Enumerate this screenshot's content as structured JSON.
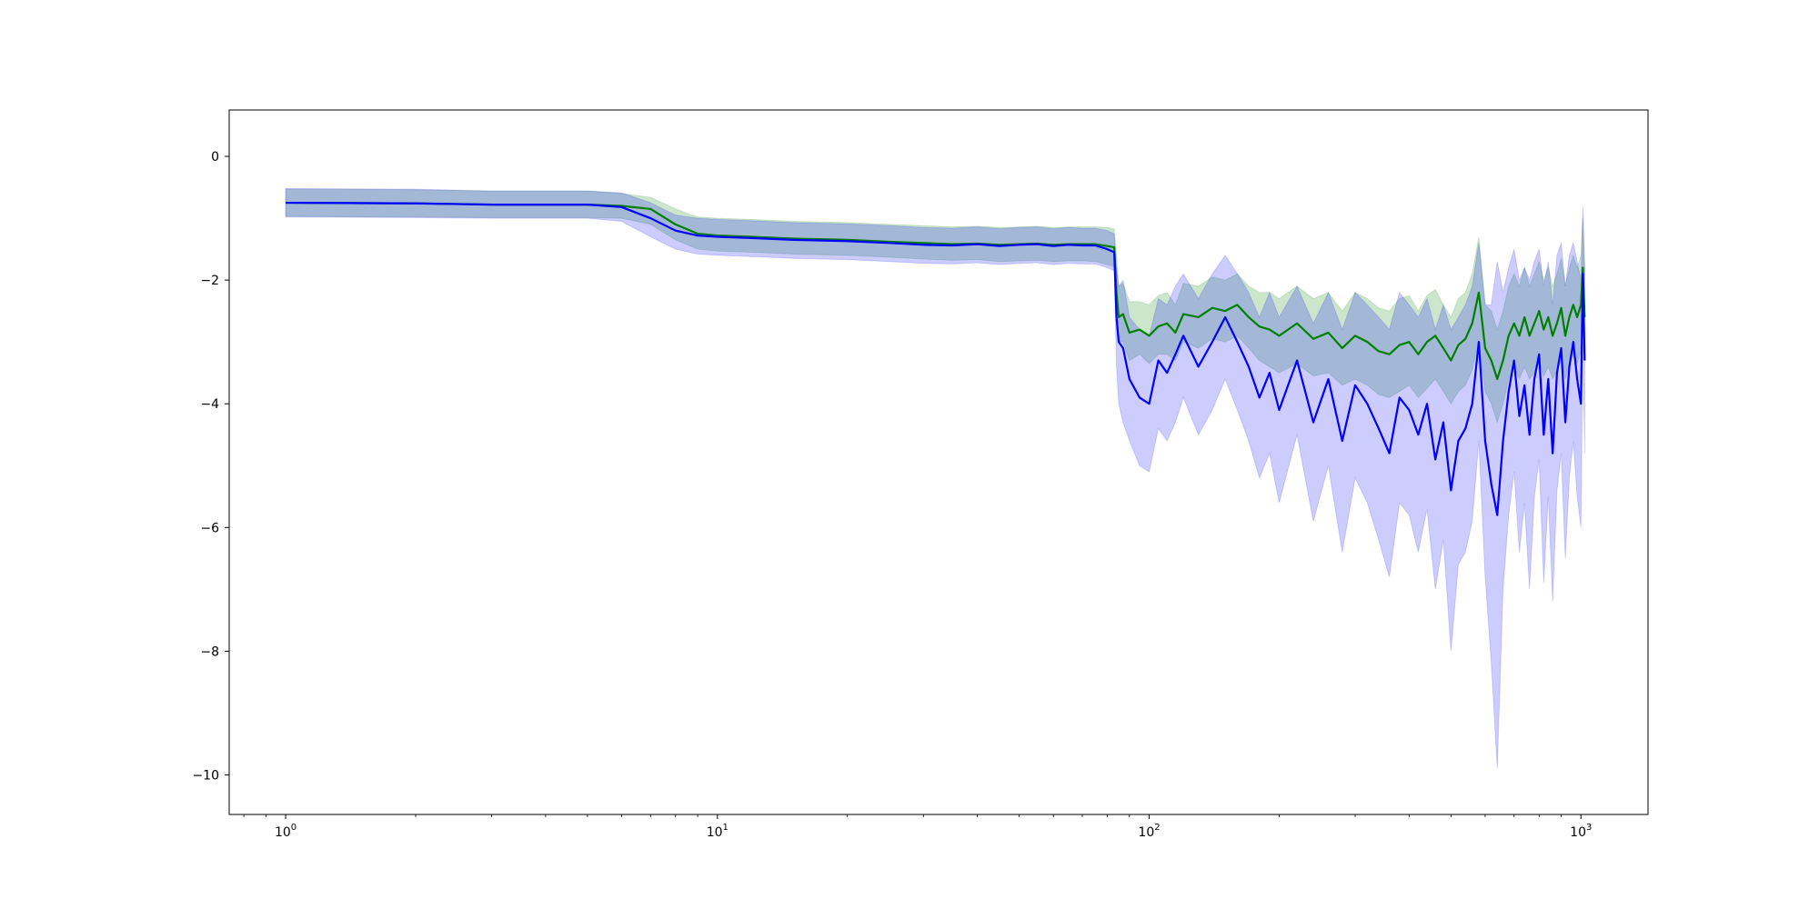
{
  "chart_data": {
    "type": "line",
    "title": "",
    "xlabel": "",
    "ylabel": "",
    "xscale": "log",
    "xlim": [
      0.74,
      1430
    ],
    "ylim": [
      -10.64,
      0.75
    ],
    "grid": false,
    "legend": "none",
    "x_ticks": [
      {
        "value": 1,
        "base": "10",
        "exp": "0"
      },
      {
        "value": 10,
        "base": "10",
        "exp": "1"
      },
      {
        "value": 100,
        "base": "10",
        "exp": "2"
      },
      {
        "value": 1000,
        "base": "10",
        "exp": "3"
      }
    ],
    "y_ticks": [
      {
        "value": 0,
        "label": "0"
      },
      {
        "value": -2,
        "label": "−2"
      },
      {
        "value": -4,
        "label": "−4"
      },
      {
        "value": -6,
        "label": "−6"
      },
      {
        "value": -8,
        "label": "−8"
      },
      {
        "value": -10,
        "label": "−10"
      }
    ],
    "series": [
      {
        "color": "#008000",
        "band_color": "#008000",
        "band_opacity": 0.2,
        "x": [
          1,
          2,
          3,
          4,
          5,
          6,
          7,
          8,
          9,
          10,
          12,
          15,
          20,
          25,
          30,
          35,
          40,
          45,
          50,
          55,
          60,
          65,
          70,
          75,
          80,
          83,
          84,
          85,
          87,
          90,
          95,
          100,
          105,
          110,
          115,
          120,
          130,
          140,
          150,
          160,
          170,
          180,
          190,
          200,
          220,
          240,
          260,
          280,
          300,
          320,
          340,
          360,
          380,
          400,
          420,
          440,
          460,
          480,
          500,
          520,
          540,
          560,
          580,
          600,
          620,
          640,
          660,
          680,
          700,
          720,
          740,
          760,
          780,
          800,
          820,
          840,
          860,
          880,
          900,
          920,
          940,
          960,
          980,
          1000,
          1010,
          1020
        ],
        "mean": [
          -0.75,
          -0.76,
          -0.78,
          -0.78,
          -0.78,
          -0.8,
          -0.85,
          -1.1,
          -1.25,
          -1.28,
          -1.3,
          -1.33,
          -1.35,
          -1.38,
          -1.4,
          -1.42,
          -1.41,
          -1.43,
          -1.42,
          -1.41,
          -1.43,
          -1.42,
          -1.42,
          -1.42,
          -1.45,
          -1.47,
          -2.2,
          -2.6,
          -2.55,
          -2.85,
          -2.8,
          -2.9,
          -2.75,
          -2.7,
          -2.85,
          -2.55,
          -2.6,
          -2.45,
          -2.5,
          -2.4,
          -2.6,
          -2.75,
          -2.8,
          -2.9,
          -2.7,
          -2.95,
          -2.85,
          -3.1,
          -2.9,
          -3.0,
          -3.15,
          -3.2,
          -3.05,
          -3.0,
          -3.2,
          -3.0,
          -2.9,
          -3.1,
          -3.3,
          -3.05,
          -2.95,
          -2.7,
          -2.2,
          -3.1,
          -3.3,
          -3.6,
          -3.3,
          -2.9,
          -2.7,
          -2.9,
          -2.6,
          -2.9,
          -2.7,
          -2.5,
          -2.8,
          -2.6,
          -2.9,
          -2.7,
          -2.45,
          -2.9,
          -2.6,
          -2.4,
          -2.6,
          -2.4,
          -1.8,
          -2.6
        ],
        "lower": [
          -0.97,
          -0.98,
          -0.99,
          -0.99,
          -0.99,
          -1.0,
          -1.1,
          -1.35,
          -1.5,
          -1.53,
          -1.55,
          -1.58,
          -1.6,
          -1.63,
          -1.66,
          -1.68,
          -1.67,
          -1.7,
          -1.69,
          -1.68,
          -1.7,
          -1.69,
          -1.69,
          -1.7,
          -1.75,
          -1.78,
          -2.8,
          -3.0,
          -3.0,
          -3.3,
          -3.2,
          -3.35,
          -3.2,
          -3.2,
          -3.3,
          -3.0,
          -3.1,
          -2.95,
          -3.0,
          -2.9,
          -3.1,
          -3.3,
          -3.4,
          -3.5,
          -3.35,
          -3.55,
          -3.5,
          -3.7,
          -3.6,
          -3.7,
          -3.85,
          -3.9,
          -3.8,
          -3.7,
          -3.9,
          -3.75,
          -3.6,
          -3.8,
          -4.0,
          -3.8,
          -3.7,
          -3.45,
          -3.0,
          -3.8,
          -4.0,
          -4.3,
          -4.0,
          -3.6,
          -3.4,
          -3.6,
          -3.4,
          -3.6,
          -3.5,
          -3.3,
          -3.55,
          -3.4,
          -3.6,
          -3.45,
          -3.2,
          -3.6,
          -3.35,
          -3.2,
          -3.35,
          -3.15,
          -2.6,
          -3.3
        ],
        "upper": [
          -0.53,
          -0.54,
          -0.56,
          -0.56,
          -0.56,
          -0.6,
          -0.66,
          -0.85,
          -0.98,
          -1.0,
          -1.02,
          -1.05,
          -1.07,
          -1.1,
          -1.12,
          -1.14,
          -1.13,
          -1.15,
          -1.14,
          -1.13,
          -1.15,
          -1.14,
          -1.14,
          -1.14,
          -1.15,
          -1.17,
          -1.6,
          -2.1,
          -2.05,
          -2.35,
          -2.35,
          -2.4,
          -2.25,
          -2.2,
          -2.4,
          -2.05,
          -2.1,
          -1.95,
          -2.0,
          -1.9,
          -2.1,
          -2.2,
          -2.2,
          -2.3,
          -2.1,
          -2.3,
          -2.2,
          -2.5,
          -2.2,
          -2.3,
          -2.45,
          -2.5,
          -2.3,
          -2.25,
          -2.5,
          -2.25,
          -2.15,
          -2.4,
          -2.6,
          -2.3,
          -2.2,
          -1.9,
          -1.3,
          -2.4,
          -2.5,
          -2.8,
          -2.5,
          -2.1,
          -1.9,
          -2.1,
          -1.8,
          -2.1,
          -1.9,
          -1.7,
          -2.0,
          -1.8,
          -2.1,
          -1.9,
          -1.65,
          -2.1,
          -1.8,
          -1.6,
          -1.8,
          -1.6,
          -1.0,
          -1.8
        ]
      },
      {
        "color": "#0000ff",
        "band_color": "#0000ff",
        "band_opacity": 0.2,
        "x": [
          1,
          2,
          3,
          4,
          5,
          6,
          7,
          8,
          9,
          10,
          12,
          15,
          20,
          25,
          30,
          35,
          40,
          45,
          50,
          55,
          60,
          65,
          70,
          75,
          80,
          83,
          84,
          85,
          87,
          90,
          95,
          100,
          105,
          110,
          115,
          120,
          130,
          140,
          150,
          160,
          170,
          180,
          190,
          200,
          220,
          240,
          260,
          280,
          300,
          320,
          340,
          360,
          380,
          400,
          420,
          440,
          460,
          480,
          500,
          520,
          540,
          560,
          580,
          600,
          620,
          640,
          660,
          680,
          700,
          720,
          740,
          760,
          780,
          800,
          820,
          840,
          860,
          880,
          900,
          920,
          940,
          960,
          980,
          1000,
          1010,
          1020
        ],
        "mean": [
          -0.75,
          -0.76,
          -0.78,
          -0.78,
          -0.78,
          -0.82,
          -1.0,
          -1.2,
          -1.28,
          -1.3,
          -1.32,
          -1.35,
          -1.37,
          -1.4,
          -1.43,
          -1.44,
          -1.42,
          -1.45,
          -1.43,
          -1.42,
          -1.45,
          -1.43,
          -1.44,
          -1.44,
          -1.5,
          -1.55,
          -2.6,
          -3.0,
          -3.1,
          -3.6,
          -3.9,
          -4.0,
          -3.3,
          -3.5,
          -3.2,
          -2.9,
          -3.4,
          -3.0,
          -2.6,
          -3.0,
          -3.4,
          -3.9,
          -3.5,
          -4.1,
          -3.3,
          -4.3,
          -3.6,
          -4.6,
          -3.7,
          -4.0,
          -4.4,
          -4.8,
          -3.9,
          -4.1,
          -4.5,
          -4.0,
          -4.9,
          -4.3,
          -5.4,
          -4.6,
          -4.4,
          -4.0,
          -3.0,
          -4.6,
          -5.3,
          -5.8,
          -4.6,
          -3.8,
          -3.3,
          -4.2,
          -3.7,
          -4.5,
          -3.6,
          -3.2,
          -4.5,
          -3.6,
          -4.8,
          -3.5,
          -3.1,
          -4.3,
          -3.4,
          -3.0,
          -3.6,
          -4.0,
          -1.9,
          -3.3
        ],
        "lower": [
          -0.98,
          -0.99,
          -1.0,
          -1.0,
          -1.0,
          -1.05,
          -1.3,
          -1.5,
          -1.58,
          -1.6,
          -1.62,
          -1.65,
          -1.67,
          -1.7,
          -1.73,
          -1.74,
          -1.72,
          -1.75,
          -1.73,
          -1.72,
          -1.75,
          -1.73,
          -1.74,
          -1.74,
          -1.8,
          -1.85,
          -3.4,
          -4.0,
          -4.3,
          -4.6,
          -5.0,
          -5.1,
          -4.4,
          -4.6,
          -4.3,
          -3.9,
          -4.5,
          -4.1,
          -3.6,
          -4.1,
          -4.6,
          -5.2,
          -4.8,
          -5.6,
          -4.5,
          -5.9,
          -5.0,
          -6.4,
          -5.2,
          -5.6,
          -6.2,
          -6.8,
          -5.6,
          -5.8,
          -6.4,
          -5.7,
          -7.0,
          -6.2,
          -8.0,
          -6.6,
          -6.4,
          -5.9,
          -4.6,
          -6.8,
          -8.2,
          -9.9,
          -7.0,
          -5.8,
          -5.1,
          -6.4,
          -5.6,
          -7.0,
          -5.5,
          -4.9,
          -6.9,
          -5.5,
          -7.2,
          -5.4,
          -4.8,
          -6.5,
          -5.2,
          -4.6,
          -5.5,
          -6.0,
          -3.0,
          -4.8
        ],
        "upper": [
          -0.52,
          -0.53,
          -0.56,
          -0.56,
          -0.56,
          -0.59,
          -0.75,
          -0.95,
          -1.0,
          -1.02,
          -1.04,
          -1.07,
          -1.09,
          -1.12,
          -1.15,
          -1.16,
          -1.14,
          -1.17,
          -1.15,
          -1.14,
          -1.17,
          -1.15,
          -1.16,
          -1.16,
          -1.2,
          -1.25,
          -1.8,
          -2.1,
          -2.0,
          -2.6,
          -2.8,
          -2.9,
          -2.3,
          -2.4,
          -2.1,
          -1.9,
          -2.3,
          -1.9,
          -1.6,
          -1.9,
          -2.2,
          -2.6,
          -2.2,
          -2.6,
          -2.1,
          -2.7,
          -2.2,
          -2.8,
          -2.2,
          -2.4,
          -2.6,
          -2.8,
          -2.2,
          -2.4,
          -2.6,
          -2.3,
          -2.8,
          -2.4,
          -2.8,
          -2.6,
          -2.4,
          -2.1,
          -1.4,
          -2.4,
          -2.4,
          -1.7,
          -2.2,
          -1.8,
          -1.5,
          -2.0,
          -1.8,
          -2.0,
          -1.7,
          -1.5,
          -2.1,
          -1.7,
          -2.4,
          -1.6,
          -1.4,
          -2.1,
          -1.6,
          -1.4,
          -1.7,
          -2.0,
          -0.8,
          -1.8
        ]
      }
    ]
  }
}
